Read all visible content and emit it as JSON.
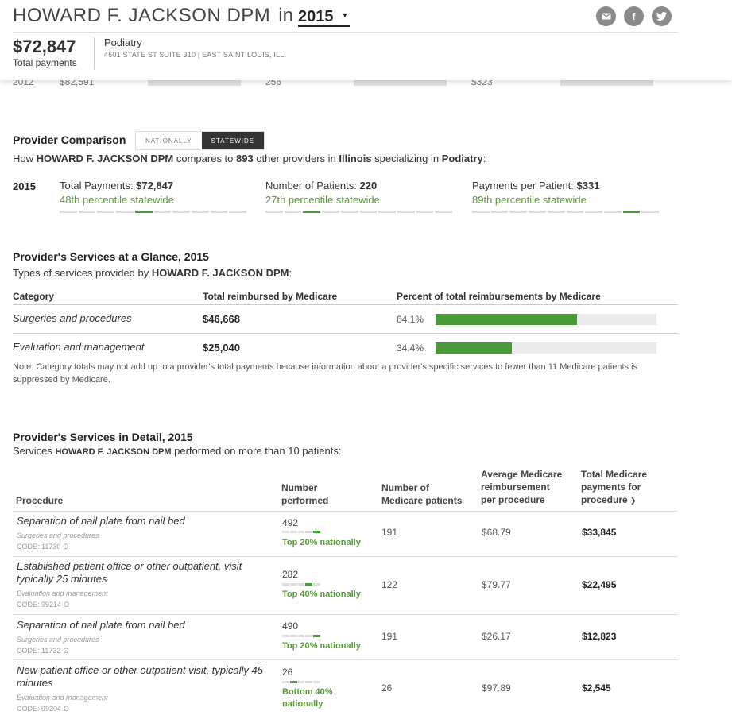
{
  "header": {
    "provider_name": "HOWARD F. JACKSON DPM",
    "in_label": "in",
    "year": "2015",
    "total_amount": "$72,847",
    "total_label": "Total payments",
    "specialty": "Podiatry",
    "address": "4601 STATE ST SUITE 310 | EAST SAINT LOUIS, ILL.",
    "share_icons": [
      "email-icon",
      "facebook-icon",
      "twitter-icon"
    ]
  },
  "history_row": {
    "year": "2012",
    "payments": "$82,591",
    "patients": "256",
    "per_patient": "$323"
  },
  "comparison": {
    "title": "Provider Comparison",
    "toggle": {
      "national": "NATIONALLY",
      "state": "STATEWIDE",
      "selected": "STATEWIDE"
    },
    "intro": {
      "pre": "How ",
      "name": "HOWARD F. JACKSON DPM",
      "mid1": " compares to ",
      "count": "893",
      "mid2": " other providers in ",
      "state": "Illinois",
      "mid3": " specializing in ",
      "specialty": "Podiatry",
      "post": ":"
    },
    "year": "2015",
    "metrics": [
      {
        "label": "Total Payments: ",
        "value": "$72,847",
        "percentile": "48th percentile statewide",
        "active_segment": 5
      },
      {
        "label": "Number of Patients: ",
        "value": "220",
        "percentile": "27th percentile statewide",
        "active_segment": 3
      },
      {
        "label": "Payments per Patient: ",
        "value": "$331",
        "percentile": "89th percentile statewide",
        "active_segment": 9
      }
    ]
  },
  "glance": {
    "title": "Provider's Services at a Glance, 2015",
    "intro_pre": "Types of services provided by ",
    "intro_name": "HOWARD F. JACKSON DPM",
    "intro_post": ":",
    "columns": [
      "Category",
      "Total reimbursed by Medicare",
      "Percent of total reimbursements by Medicare"
    ],
    "rows": [
      {
        "category": "Surgeries and procedures",
        "amount": "$46,668",
        "percent": "64.1%",
        "fraction": 0.641
      },
      {
        "category": "Evaluation and management",
        "amount": "$25,040",
        "percent": "34.4%",
        "fraction": 0.344
      }
    ],
    "note": "Note: Category totals may not add up to a provider's total payments because information about a provider's specific services to fewer than 11 Medicare patients is suppressed by Medicare."
  },
  "detail": {
    "title": "Provider's Services in Detail, 2015",
    "intro_pre": "Services ",
    "intro_name": "HOWARD F. JACKSON DPM",
    "intro_post": " performed on more than 10 patients:",
    "columns": {
      "procedure": "Procedure",
      "performed": [
        "Number",
        "performed"
      ],
      "patients": [
        "Number of",
        "Medicare patients"
      ],
      "avg": [
        "Average Medicare",
        "reimbursement",
        "per procedure"
      ],
      "total": [
        "Total Medicare",
        "payments for",
        "procedure"
      ]
    },
    "rows": [
      {
        "procedure": "Separation of nail plate from nail bed",
        "category": "Surgeries and procedures",
        "code": "CODE: 11730-O",
        "performed": "492",
        "rank": "Top 20% nationally",
        "active_segment": 5,
        "patients": "191",
        "avg": "$68.79",
        "total": "$33,845"
      },
      {
        "procedure": "Established patient office or other outpatient, visit typically 25 minutes",
        "category": "Evaluation and management",
        "code": "CODE: 99214-O",
        "performed": "282",
        "rank": "Top 40% nationally",
        "active_segment": 4,
        "patients": "122",
        "avg": "$79.77",
        "total": "$22,495"
      },
      {
        "procedure": "Separation of nail plate from nail bed",
        "category": "Surgeries and procedures",
        "code": "CODE: 11732-O",
        "performed": "490",
        "rank": "Top 20% nationally",
        "active_segment": 5,
        "patients": "191",
        "avg": "$26.17",
        "total": "$12,823"
      },
      {
        "procedure": "New patient office or other outpatient visit, typically 45 minutes",
        "category": "Evaluation and management",
        "code": "CODE: 99204-O",
        "performed": "26",
        "rank": "Bottom 40% nationally",
        "active_segment": 2,
        "patients": "26",
        "avg": "$97.89",
        "total": "$2,545"
      }
    ]
  }
}
